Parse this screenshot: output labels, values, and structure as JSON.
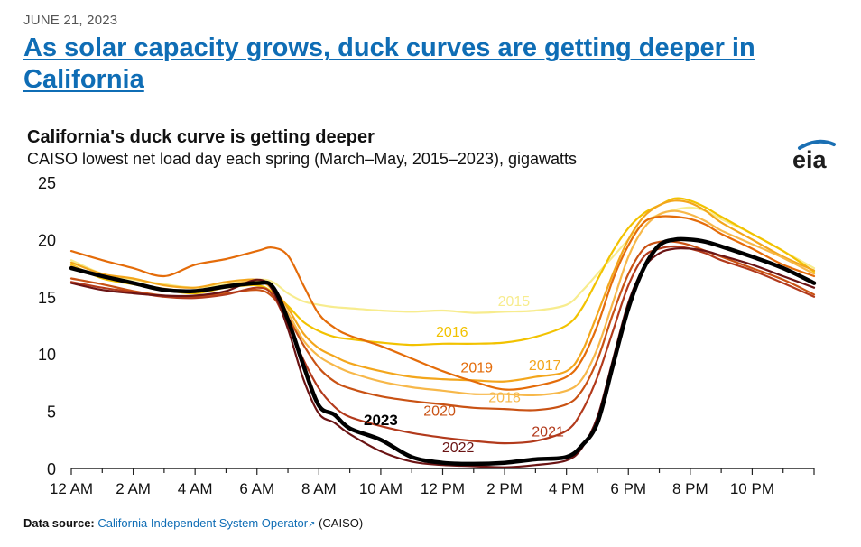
{
  "article": {
    "date": "JUNE 21, 2023",
    "headline": "As solar capacity grows, duck curves are getting deeper in California"
  },
  "logo_text": "eia",
  "source": {
    "label": "Data source:",
    "link_text": "California Independent System Operator",
    "suffix": "(CAISO)"
  },
  "colors": {
    "2015": "#f7ec8e",
    "2016": "#f2c200",
    "2017": "#f3a61c",
    "2018": "#f7b84a",
    "2019": "#e46c0a",
    "2020": "#c95214",
    "2021": "#b23a1c",
    "2022": "#6b1414",
    "2023": "#000000",
    "logo": "#1d1d1d",
    "logo_accent": "#1a6fb3"
  },
  "chart_data": {
    "type": "line",
    "title": "California's duck curve is getting deeper",
    "subtitle": "CAISO lowest net load day each spring (March–May, 2015–2023), gigawatts",
    "xlabel": "",
    "ylabel": "",
    "xlim": [
      0,
      24
    ],
    "ylim": [
      0,
      25
    ],
    "x_ticks": [
      0,
      2,
      4,
      6,
      8,
      10,
      12,
      14,
      16,
      18,
      20,
      22
    ],
    "x_tick_labels": [
      "12 AM",
      "2 AM",
      "4 AM",
      "6 AM",
      "8 AM",
      "10 AM",
      "12 PM",
      "2 PM",
      "4 PM",
      "6 PM",
      "8 PM",
      "10 PM"
    ],
    "y_ticks": [
      0,
      5,
      10,
      15,
      20,
      25
    ],
    "y_tick_labels": [
      "0",
      "5",
      "10",
      "15",
      "20",
      "25"
    ],
    "grid": false,
    "legend": "inline labels",
    "x": [
      0,
      1,
      2,
      3,
      4,
      5,
      6,
      6.5,
      7,
      7.5,
      8,
      8.5,
      9,
      10,
      11,
      12,
      13,
      14,
      15,
      16,
      16.5,
      17,
      17.5,
      18,
      18.5,
      19,
      19.5,
      20,
      20.5,
      21,
      22,
      23,
      24
    ],
    "series": [
      {
        "name": "2015",
        "values": [
          18.2,
          17.0,
          16.5,
          16.1,
          15.8,
          16.1,
          16.5,
          16.3,
          15.3,
          14.6,
          14.3,
          14.1,
          14.0,
          13.8,
          13.7,
          13.8,
          13.6,
          13.7,
          13.8,
          14.3,
          15.5,
          17.0,
          18.5,
          20.0,
          21.5,
          22.2,
          22.6,
          22.8,
          22.5,
          21.8,
          20.5,
          19.0,
          17.5
        ]
      },
      {
        "name": "2016",
        "values": [
          17.8,
          16.6,
          16.1,
          15.6,
          15.3,
          15.8,
          16.0,
          15.4,
          14.2,
          12.8,
          12.0,
          11.5,
          11.3,
          11.0,
          10.8,
          10.9,
          10.9,
          11.0,
          11.5,
          12.5,
          14.0,
          16.5,
          19.0,
          21.0,
          22.3,
          23.0,
          23.6,
          23.4,
          22.8,
          22.0,
          20.5,
          19.0,
          17.2
        ]
      },
      {
        "name": "2017",
        "values": [
          18.0,
          17.0,
          16.6,
          16.0,
          15.8,
          16.3,
          16.5,
          15.8,
          14.0,
          11.8,
          10.5,
          9.8,
          9.2,
          8.5,
          8.0,
          7.8,
          7.7,
          7.6,
          8.0,
          8.5,
          10.2,
          13.5,
          17.0,
          20.0,
          22.0,
          23.0,
          23.4,
          23.2,
          22.5,
          21.5,
          20.0,
          18.5,
          17.3
        ]
      },
      {
        "name": "2018",
        "values": [
          17.7,
          16.7,
          16.2,
          15.7,
          15.5,
          16.0,
          16.4,
          15.6,
          13.6,
          11.2,
          9.8,
          9.0,
          8.4,
          7.6,
          7.1,
          6.8,
          6.5,
          6.5,
          6.4,
          6.8,
          7.8,
          10.5,
          14.5,
          18.5,
          21.0,
          22.2,
          22.5,
          22.2,
          21.6,
          20.8,
          19.6,
          18.4,
          17.0
        ]
      },
      {
        "name": "2019",
        "values": [
          19.0,
          18.2,
          17.5,
          16.8,
          17.8,
          18.3,
          19.0,
          19.3,
          18.6,
          16.0,
          13.5,
          12.3,
          11.6,
          10.7,
          9.6,
          8.5,
          7.6,
          6.9,
          7.2,
          8.0,
          9.5,
          12.5,
          16.5,
          19.5,
          21.5,
          22.0,
          22.0,
          21.8,
          21.3,
          20.5,
          19.2,
          17.8,
          16.8
        ]
      },
      {
        "name": "2020",
        "values": [
          16.6,
          16.1,
          15.5,
          15.1,
          15.0,
          15.3,
          15.6,
          15.0,
          13.2,
          10.8,
          8.8,
          7.6,
          7.0,
          6.3,
          5.9,
          5.6,
          5.3,
          5.2,
          5.1,
          5.6,
          6.8,
          9.5,
          13.5,
          17.0,
          19.2,
          19.8,
          19.8,
          19.5,
          19.0,
          18.5,
          17.5,
          16.5,
          15.2
        ]
      },
      {
        "name": "2021",
        "values": [
          16.3,
          15.8,
          15.4,
          15.0,
          14.9,
          15.2,
          15.8,
          15.2,
          12.5,
          9.5,
          7.0,
          5.4,
          4.5,
          3.7,
          3.1,
          2.7,
          2.4,
          2.2,
          2.4,
          3.3,
          5.0,
          8.0,
          12.0,
          16.0,
          18.5,
          19.2,
          19.4,
          19.2,
          18.8,
          18.2,
          17.3,
          16.2,
          15.0
        ]
      },
      {
        "name": "2022",
        "values": [
          16.2,
          15.6,
          15.3,
          15.1,
          15.1,
          15.5,
          16.5,
          15.6,
          12.2,
          7.8,
          4.8,
          4.0,
          3.0,
          1.5,
          0.6,
          0.3,
          0.2,
          0.1,
          0.3,
          0.7,
          1.8,
          4.5,
          9.5,
          14.5,
          17.5,
          18.8,
          19.2,
          19.2,
          19.0,
          18.6,
          17.8,
          16.8,
          15.8
        ]
      },
      {
        "name": "2023",
        "values": [
          17.5,
          16.8,
          16.2,
          15.6,
          15.5,
          15.9,
          16.2,
          15.9,
          13.0,
          9.0,
          5.5,
          4.7,
          3.5,
          2.5,
          1.0,
          0.5,
          0.4,
          0.5,
          0.8,
          1.0,
          2.0,
          4.0,
          9.0,
          14.0,
          17.5,
          19.5,
          20.0,
          20.0,
          19.8,
          19.4,
          18.5,
          17.5,
          16.2
        ]
      }
    ],
    "annotations": [
      {
        "text": "2015",
        "series": "2015",
        "x": 14.3,
        "y": 14.2
      },
      {
        "text": "2016",
        "series": "2016",
        "x": 12.3,
        "y": 11.5
      },
      {
        "text": "2017",
        "series": "2017",
        "x": 15.3,
        "y": 8.6
      },
      {
        "text": "2018",
        "series": "2018",
        "x": 14.0,
        "y": 5.8
      },
      {
        "text": "2019",
        "series": "2019",
        "x": 13.1,
        "y": 8.4
      },
      {
        "text": "2020",
        "series": "2020",
        "x": 11.9,
        "y": 4.6
      },
      {
        "text": "2021",
        "series": "2021",
        "x": 15.4,
        "y": 2.8
      },
      {
        "text": "2022",
        "series": "2022",
        "x": 12.5,
        "y": 1.4
      },
      {
        "text": "2023",
        "series": "2023",
        "x": 10.0,
        "y": 3.8,
        "bold": true
      }
    ]
  }
}
